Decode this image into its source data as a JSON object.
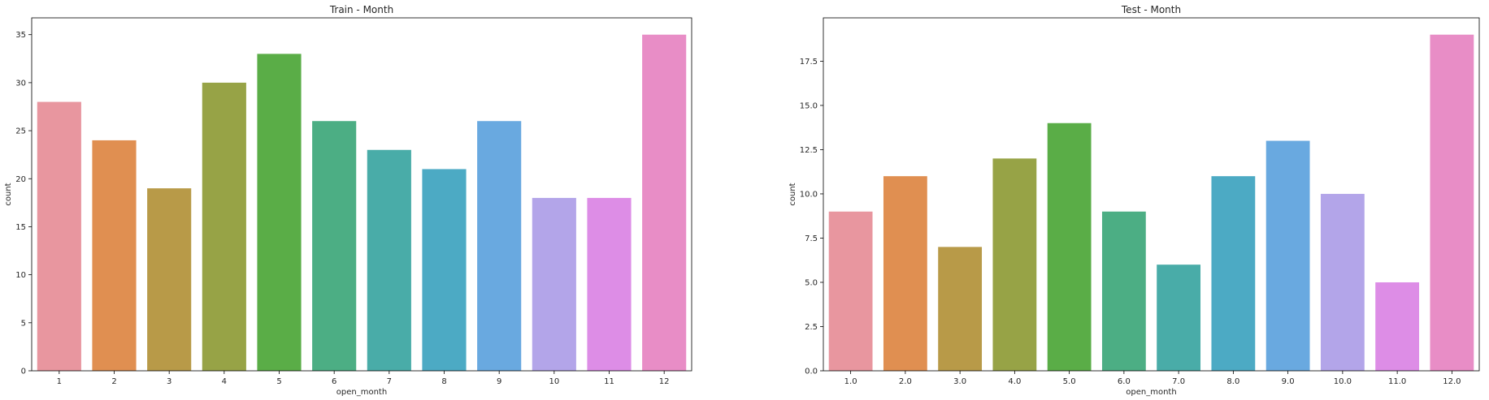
{
  "chart_data": [
    {
      "type": "bar",
      "title": "Train - Month",
      "xlabel": "open_month",
      "ylabel": "count",
      "categories": [
        "1",
        "2",
        "3",
        "4",
        "5",
        "6",
        "7",
        "8",
        "9",
        "10",
        "11",
        "12"
      ],
      "values": [
        28,
        24,
        19,
        30,
        33,
        26,
        23,
        21,
        26,
        18,
        18,
        35
      ],
      "ylim": [
        0,
        36.75
      ],
      "yticks": [
        0,
        5,
        10,
        15,
        20,
        25,
        30,
        35
      ],
      "ytick_labels": [
        "0",
        "5",
        "10",
        "15",
        "20",
        "25",
        "30",
        "35"
      ],
      "grid": false,
      "colors": [
        "#e8969f",
        "#e08f51",
        "#b89a48",
        "#97a346",
        "#5aad47",
        "#4cae84",
        "#49aca8",
        "#4caac4",
        "#69a9e0",
        "#b3a5e9",
        "#dd8de6",
        "#e88dc6"
      ]
    },
    {
      "type": "bar",
      "title": "Test - Month",
      "xlabel": "open_month",
      "ylabel": "count",
      "categories": [
        "1.0",
        "2.0",
        "3.0",
        "4.0",
        "5.0",
        "6.0",
        "7.0",
        "8.0",
        "9.0",
        "10.0",
        "11.0",
        "12.0"
      ],
      "values": [
        9,
        11,
        7,
        12,
        14,
        9,
        6,
        11,
        13,
        10,
        5,
        19
      ],
      "ylim": [
        0,
        19.95
      ],
      "yticks": [
        0,
        2.5,
        5,
        7.5,
        10,
        12.5,
        15,
        17.5
      ],
      "ytick_labels": [
        "0.0",
        "2.5",
        "5.0",
        "7.5",
        "10.0",
        "12.5",
        "15.0",
        "17.5"
      ],
      "grid": false,
      "colors": [
        "#e8969f",
        "#e08f51",
        "#b89a48",
        "#97a346",
        "#5aad47",
        "#4cae84",
        "#49aca8",
        "#4caac4",
        "#69a9e0",
        "#b3a5e9",
        "#dd8de6",
        "#e88dc6"
      ]
    }
  ]
}
